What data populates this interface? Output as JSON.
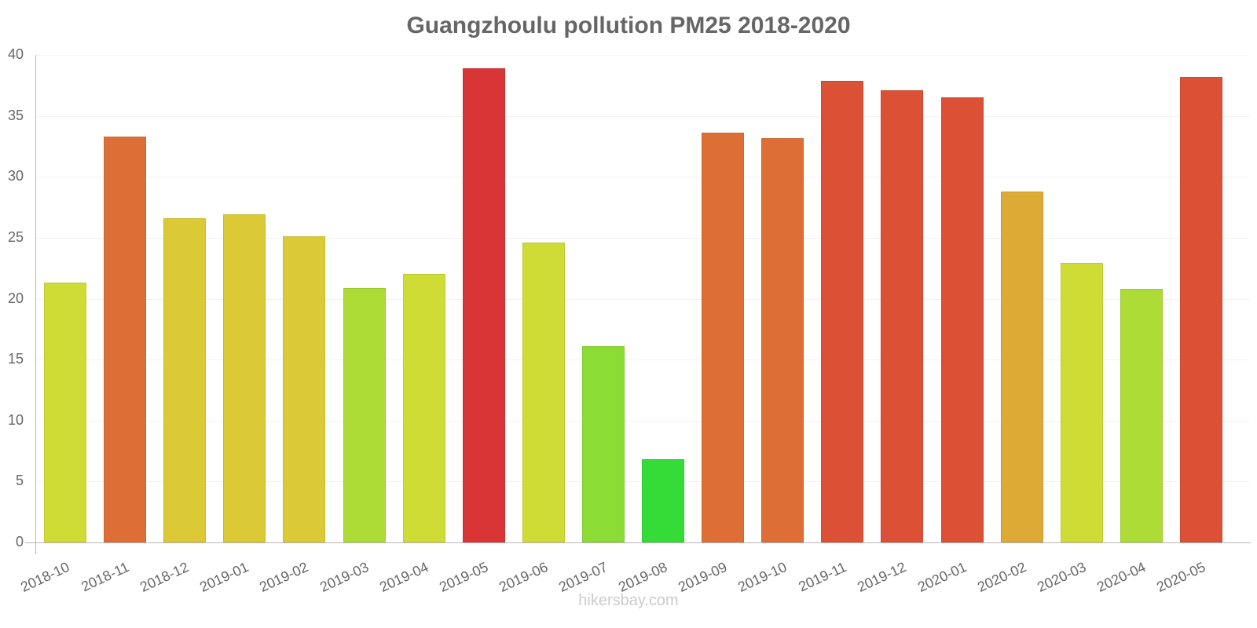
{
  "chart_data": {
    "type": "bar",
    "title": "Guangzhoulu pollution PM25 2018-2020",
    "xlabel": "",
    "ylabel": "",
    "ylim": [
      0,
      40
    ],
    "yticks": [
      0,
      5,
      10,
      15,
      20,
      25,
      30,
      35,
      40
    ],
    "grid": true,
    "legend": null,
    "categories": [
      "2018-10",
      "2018-11",
      "2018-12",
      "2019-01",
      "2019-02",
      "2019-03",
      "2019-04",
      "2019-05",
      "2019-06",
      "2019-07",
      "2019-08",
      "2019-09",
      "2019-10",
      "2019-11",
      "2019-12",
      "2020-01",
      "2020-02",
      "2020-03",
      "2020-04",
      "2020-05"
    ],
    "values": [
      21.3,
      33.3,
      26.6,
      26.9,
      25.1,
      20.9,
      22.0,
      38.9,
      24.6,
      16.1,
      6.8,
      33.6,
      33.2,
      37.9,
      37.1,
      36.5,
      28.8,
      22.9,
      20.8,
      38.2
    ],
    "colors": [
      "#cfdc35",
      "#dd6f36",
      "#dbca35",
      "#dbca35",
      "#dbca35",
      "#acdc35",
      "#cfdc35",
      "#da3536",
      "#cfdc35",
      "#8bdc35",
      "#35dc38",
      "#dd6f36",
      "#dd6f36",
      "#dc5136",
      "#dc5136",
      "#dc5136",
      "#dcaa35",
      "#cfdc35",
      "#acdc35",
      "#dc5136"
    ]
  },
  "watermark": "hikersbay.com"
}
